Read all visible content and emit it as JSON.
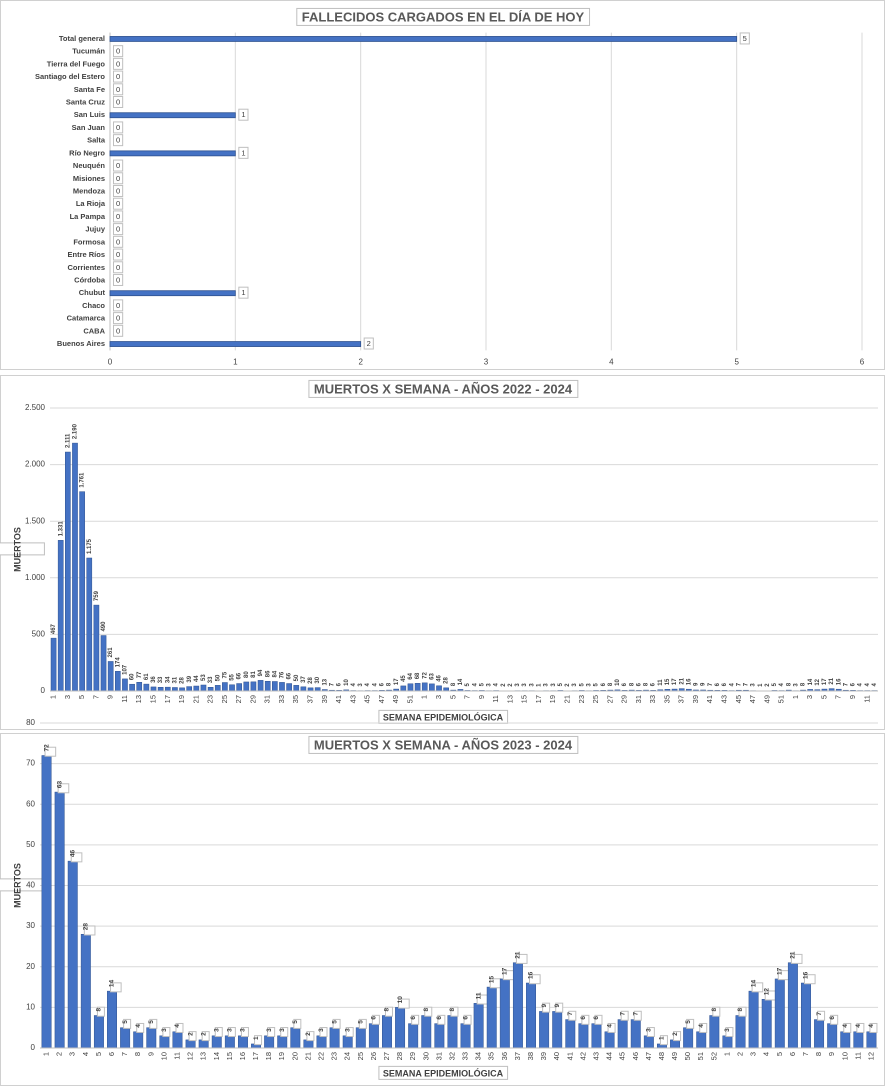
{
  "chart_data": [
    {
      "type": "barh",
      "title": "FALLECIDOS CARGADOS EN EL DÍA DE HOY",
      "categories": [
        "Total general",
        "Tucumán",
        "Tierra del Fuego",
        "Santiago del Estero",
        "Santa Fe",
        "Santa Cruz",
        "San Luis",
        "San Juan",
        "Salta",
        "Río Negro",
        "Neuquén",
        "Misiones",
        "Mendoza",
        "La Rioja",
        "La Pampa",
        "Jujuy",
        "Formosa",
        "Entre Ríos",
        "Corrientes",
        "Córdoba",
        "Chubut",
        "Chaco",
        "Catamarca",
        "CABA",
        "Buenos Aires"
      ],
      "values": [
        5,
        0,
        0,
        0,
        0,
        0,
        1,
        0,
        0,
        1,
        0,
        0,
        0,
        0,
        0,
        0,
        0,
        0,
        0,
        0,
        1,
        0,
        0,
        0,
        2
      ],
      "color": "#4472c4",
      "xlim": [
        0,
        6
      ],
      "xticks": [
        0,
        1,
        2,
        3,
        4,
        5,
        6
      ],
      "grid": true
    },
    {
      "type": "bar",
      "title": "MUERTOS X SEMANA - AÑOS 2022 - 2024",
      "xlabel": "SEMANA EPIDEMIOLÓGICA",
      "ylabel": "MUERTOS",
      "categories": [
        "1",
        null,
        "3",
        null,
        "5",
        null,
        "7",
        null,
        "9",
        null,
        "11",
        null,
        "13",
        null,
        "15",
        null,
        "17",
        null,
        "19",
        null,
        "21",
        null,
        "23",
        null,
        "25",
        null,
        "27",
        null,
        "29",
        null,
        "31",
        null,
        "33",
        null,
        "35",
        null,
        "37",
        null,
        "39",
        null,
        "41",
        null,
        "43",
        null,
        "45",
        null,
        "47",
        null,
        "49",
        null,
        "51",
        null,
        "1",
        null,
        "3",
        null,
        "5",
        null,
        "7",
        null,
        "9",
        null,
        "11",
        null,
        "13",
        null,
        "15",
        null,
        "17",
        null,
        "19",
        null,
        "21",
        null,
        "23",
        null,
        "25",
        null,
        "27",
        null,
        "29",
        null,
        "31",
        null,
        "33",
        null,
        "35",
        null,
        "37",
        null,
        "39",
        null,
        "41",
        null,
        "43",
        null,
        "45",
        null,
        "47",
        null,
        "49",
        null,
        "51",
        null,
        "1",
        null,
        "3",
        null,
        "5",
        null,
        "7",
        null,
        "9",
        null,
        "11",
        null
      ],
      "values": [
        467,
        1331,
        2111,
        2190,
        1761,
        1175,
        759,
        490,
        261,
        174,
        107,
        60,
        77,
        61,
        36,
        33,
        34,
        31,
        28,
        39,
        44,
        53,
        33,
        50,
        75,
        55,
        66,
        80,
        81,
        94,
        86,
        84,
        76,
        66,
        50,
        37,
        28,
        30,
        13,
        7,
        6,
        10,
        4,
        3,
        4,
        4,
        6,
        8,
        17,
        45,
        64,
        68,
        72,
        63,
        46,
        28,
        8,
        14,
        5,
        4,
        5,
        3,
        4,
        2,
        2,
        3,
        3,
        3,
        1,
        3,
        3,
        5,
        2,
        3,
        5,
        3,
        5,
        6,
        8,
        10,
        6,
        8,
        6,
        8,
        6,
        11,
        15,
        17,
        21,
        16,
        9,
        9,
        7,
        6,
        6,
        4,
        7,
        7,
        3,
        1,
        2,
        5,
        4,
        8,
        3,
        8,
        14,
        12,
        17,
        21,
        16,
        7,
        6,
        4,
        4,
        4
      ],
      "value_labels": [
        "467",
        "1.331",
        "2.111",
        "2.190",
        "1.761",
        "1.175",
        "759",
        "490",
        "261",
        "174",
        "107",
        "60",
        "77",
        "61",
        "36",
        "33",
        "34",
        "31",
        "28",
        "39",
        "44",
        "53",
        "33",
        "50",
        "75",
        "55",
        "66",
        "80",
        "81",
        "94",
        "86",
        "84",
        "76",
        "66",
        "50",
        "37",
        "28",
        "30",
        "13",
        "7",
        "6",
        "10",
        "4",
        "3",
        "4",
        "4",
        "6",
        "8",
        "17",
        "45",
        "64",
        "68",
        "72",
        "63",
        "46",
        "28",
        "8",
        "14",
        "5",
        "4",
        "5",
        "3",
        "4",
        "2",
        "2",
        "3",
        "3",
        "3",
        "1",
        "3",
        "3",
        "5",
        "2",
        "3",
        "5",
        "3",
        "5",
        "6",
        "8",
        "10",
        "6",
        "8",
        "6",
        "8",
        "6",
        "11",
        "15",
        "17",
        "21",
        "16",
        "9",
        "9",
        "7",
        "6",
        "6",
        "4",
        "7",
        "7",
        "3",
        "1",
        "2",
        "5",
        "4",
        "8",
        "3",
        "8",
        "14",
        "12",
        "17",
        "21",
        "16",
        "7",
        "6",
        "4",
        "4",
        "4"
      ],
      "color": "#4472c4",
      "ylim": [
        0,
        2500
      ],
      "yticks": [
        0,
        500,
        {
          "value": 1000,
          "label": "1.000"
        },
        {
          "value": 1500,
          "label": "1.500"
        },
        {
          "value": 2000,
          "label": "2.000"
        },
        {
          "value": 2500,
          "label": "2.500"
        }
      ],
      "grid": true
    },
    {
      "type": "bar",
      "title": "MUERTOS X SEMANA - AÑOS 2023 - 2024",
      "xlabel": "SEMANA EPIDEMIOLÓGICA",
      "ylabel": "MUERTOS",
      "categories": [
        "1",
        "2",
        "3",
        "4",
        "5",
        "6",
        "7",
        "8",
        "9",
        "10",
        "11",
        "12",
        "13",
        "14",
        "15",
        "16",
        "17",
        "18",
        "19",
        "20",
        "21",
        "22",
        "23",
        "24",
        "25",
        "26",
        "27",
        "28",
        "29",
        "30",
        "31",
        "32",
        "33",
        "34",
        "35",
        "36",
        "37",
        "38",
        "39",
        "40",
        "41",
        "42",
        "43",
        "44",
        "45",
        "46",
        "47",
        "48",
        "49",
        "50",
        "51",
        "52",
        "1",
        "2",
        "3",
        "4",
        "5",
        "6",
        "7",
        "8",
        "9",
        "10",
        "11",
        "12"
      ],
      "values": [
        72,
        63,
        46,
        28,
        8,
        14,
        5,
        4,
        5,
        3,
        4,
        2,
        2,
        3,
        3,
        3,
        1,
        3,
        3,
        5,
        2,
        3,
        5,
        3,
        5,
        6,
        8,
        10,
        6,
        8,
        6,
        8,
        6,
        11,
        15,
        17,
        21,
        16,
        9,
        9,
        7,
        6,
        6,
        4,
        7,
        7,
        3,
        1,
        2,
        5,
        4,
        8,
        3,
        8,
        14,
        12,
        17,
        21,
        16,
        7,
        6,
        4,
        4,
        4
      ],
      "color": "#4472c4",
      "ylim": [
        0,
        80
      ],
      "yticks": [
        0,
        10,
        20,
        30,
        40,
        50,
        60,
        70,
        80
      ],
      "grid": true
    }
  ]
}
